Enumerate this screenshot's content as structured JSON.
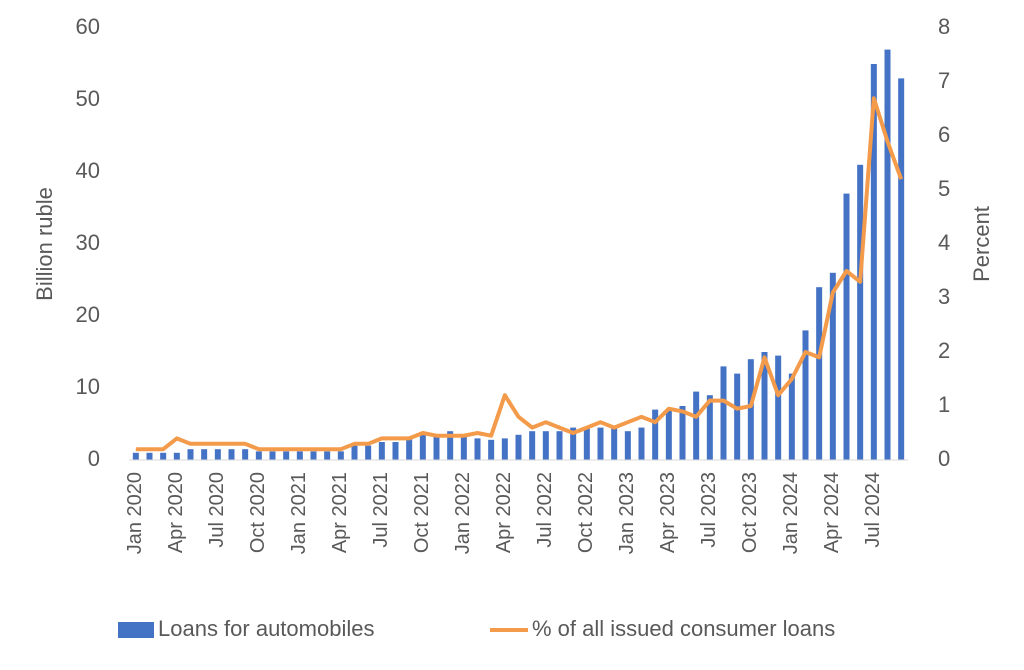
{
  "chart_data": {
    "type": "bar_line",
    "categories": [
      "Jan 2020",
      null,
      null,
      "Apr 2020",
      null,
      null,
      "Jul 2020",
      null,
      null,
      "Oct 2020",
      null,
      null,
      "Jan 2021",
      null,
      null,
      "Apr 2021",
      null,
      null,
      "Jul 2021",
      null,
      null,
      "Oct 2021",
      null,
      null,
      "Jan 2022",
      null,
      null,
      "Apr 2022",
      null,
      null,
      "Jul 2022",
      null,
      null,
      "Oct 2022",
      null,
      null,
      "Jan 2023",
      null,
      null,
      "Apr 2023",
      null,
      null,
      "Jul 2023",
      null,
      null,
      "Oct 2023",
      null,
      null,
      "Jan 2024",
      null,
      null,
      "Apr 2024",
      null,
      null,
      "Jul 2024",
      null,
      null
    ],
    "series": [
      {
        "name": "Loans for automobiles",
        "type": "bar",
        "color": "#4472c4",
        "axis": "y",
        "values": [
          1,
          1,
          1,
          1,
          1.5,
          1.5,
          1.5,
          1.5,
          1.5,
          1.2,
          1.2,
          1.2,
          1.2,
          1.2,
          1.2,
          1.2,
          2,
          2,
          2.5,
          2.5,
          3,
          3.5,
          3.5,
          4,
          3.5,
          3,
          2.8,
          3,
          3.5,
          4,
          4,
          4,
          4.5,
          4.5,
          4.5,
          4.5,
          4,
          4.5,
          7,
          7,
          7.5,
          9.5,
          9,
          13,
          12,
          14,
          15,
          14.5,
          12,
          18,
          24,
          26,
          37,
          41,
          55,
          57,
          53
        ]
      },
      {
        "name": "% of all issued consumer loans",
        "type": "line",
        "color": "#f39b4a",
        "axis": "y2",
        "values": [
          0.2,
          0.2,
          0.2,
          0.4,
          0.3,
          0.3,
          0.3,
          0.3,
          0.3,
          0.2,
          0.2,
          0.2,
          0.2,
          0.2,
          0.2,
          0.2,
          0.3,
          0.3,
          0.4,
          0.4,
          0.4,
          0.5,
          0.45,
          0.45,
          0.45,
          0.5,
          0.45,
          1.2,
          0.8,
          0.6,
          0.7,
          0.6,
          0.5,
          0.6,
          0.7,
          0.6,
          0.7,
          0.8,
          0.7,
          0.95,
          0.9,
          0.8,
          1.1,
          1.1,
          0.95,
          1.0,
          1.9,
          1.2,
          1.5,
          2.0,
          1.9,
          3.1,
          3.5,
          3.3,
          6.7,
          5.9,
          5.2
        ]
      }
    ],
    "y_label": "Billion ruble",
    "y2_label": "Percent",
    "ylim": [
      0,
      60
    ],
    "yticks": [
      0,
      10,
      20,
      30,
      40,
      50,
      60
    ],
    "y2lim": [
      0,
      8
    ],
    "y2ticks": [
      0,
      1,
      2,
      3,
      4,
      5,
      6,
      7,
      8
    ],
    "legend": "bottom"
  }
}
